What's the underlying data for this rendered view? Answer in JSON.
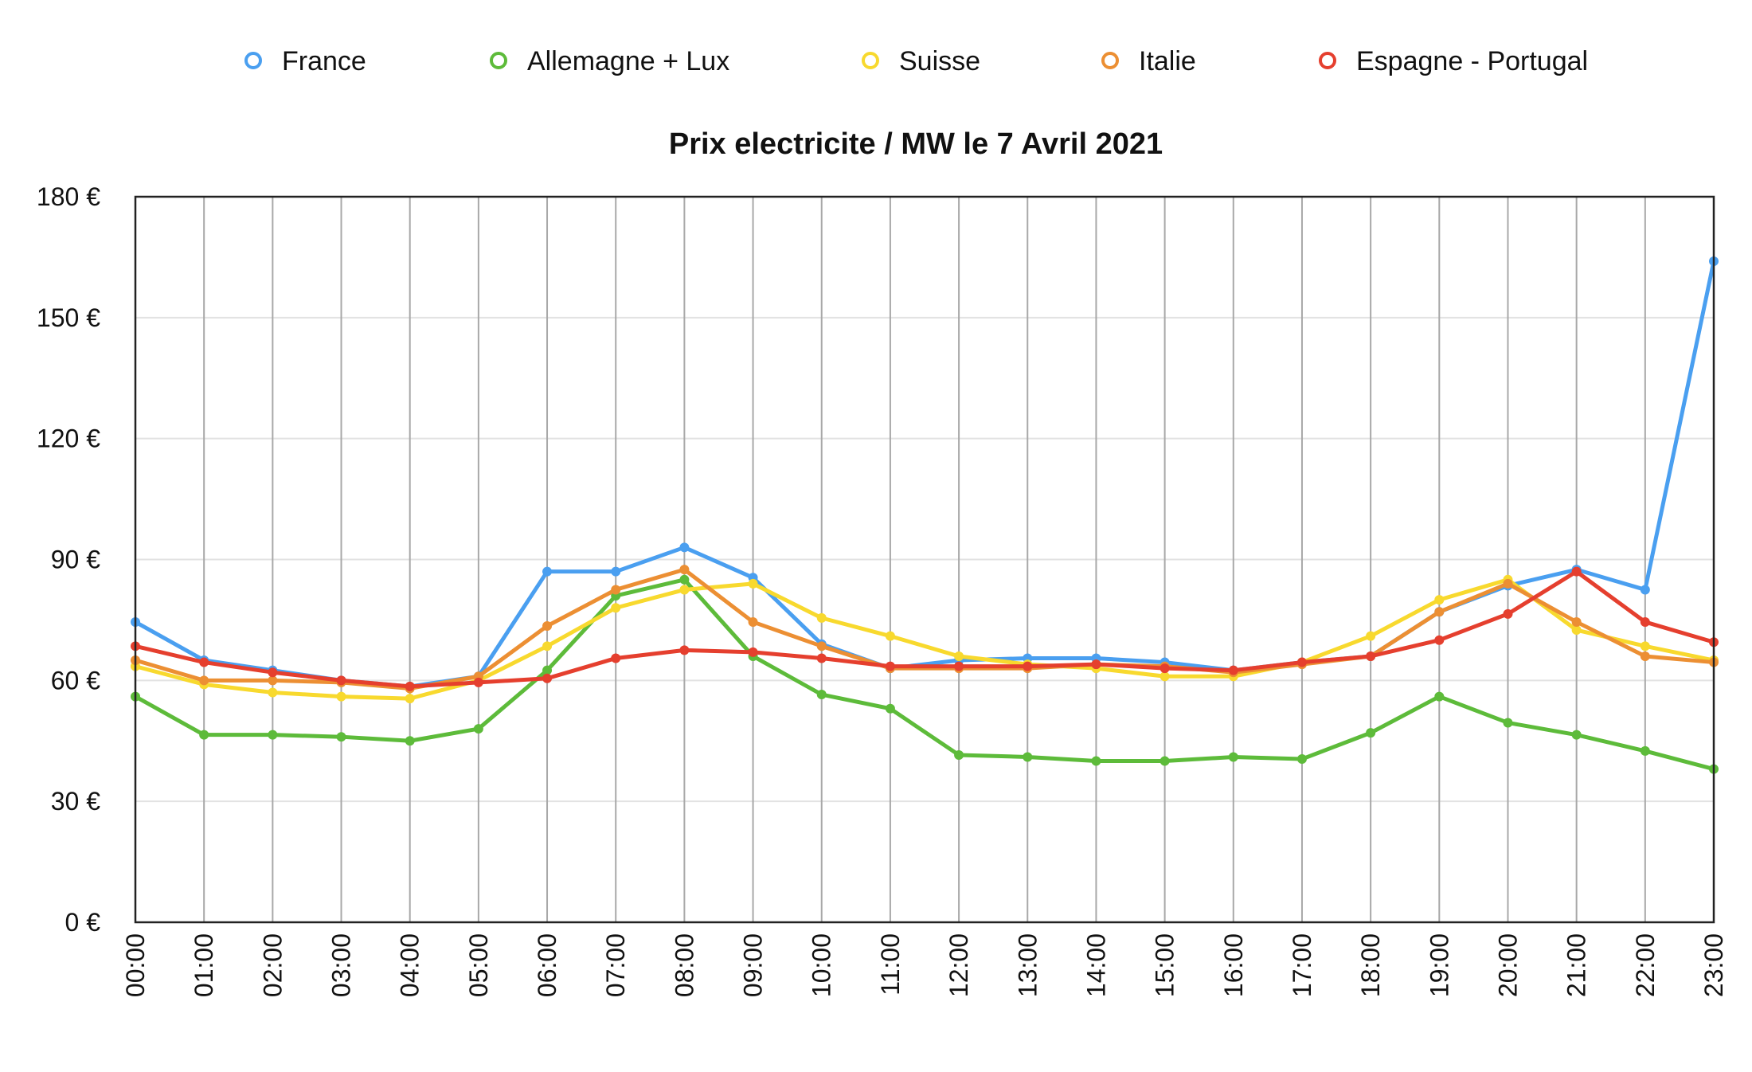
{
  "chart_data": {
    "type": "line",
    "title": "Prix electricite / MW le 7 Avril 2021",
    "xlabel": "",
    "ylabel": "",
    "ylim": [
      0,
      180
    ],
    "y_ticks": [
      "0 €",
      "30 €",
      "60 €",
      "90 €",
      "120 €",
      "150 €",
      "180 €"
    ],
    "y_tick_values": [
      0,
      30,
      60,
      90,
      120,
      150,
      180
    ],
    "categories": [
      "00:00",
      "01:00",
      "02:00",
      "03:00",
      "04:00",
      "05:00",
      "06:00",
      "07:00",
      "08:00",
      "09:00",
      "10:00",
      "11:00",
      "12:00",
      "13:00",
      "14:00",
      "15:00",
      "16:00",
      "17:00",
      "18:00",
      "19:00",
      "20:00",
      "21:00",
      "22:00",
      "23:00"
    ],
    "legend_position": "top",
    "grid": "vertical-and-horizontal",
    "series": [
      {
        "name": "France",
        "color": "#4a9ff0",
        "values": [
          74.5,
          65,
          62.5,
          60,
          58.5,
          61,
          87,
          87,
          93,
          85.5,
          69,
          63,
          65,
          65.5,
          65.5,
          64.5,
          62.5,
          64.5,
          66,
          77,
          83.5,
          87.5,
          82.5,
          164
        ]
      },
      {
        "name": "Allemagne + Lux",
        "color": "#5dbb3a",
        "values": [
          56,
          46.5,
          46.5,
          46,
          45,
          48,
          62.5,
          81,
          85,
          66,
          56.5,
          53,
          41.5,
          41,
          40,
          40,
          41,
          40.5,
          47,
          56,
          49.5,
          46.5,
          42.5,
          38
        ]
      },
      {
        "name": "Suisse",
        "color": "#f8d92e",
        "values": [
          63.5,
          59,
          57,
          56,
          55.5,
          60,
          68.5,
          78,
          82.5,
          84,
          75.5,
          71,
          66,
          64,
          63,
          61,
          61,
          64.5,
          71,
          80,
          85,
          72.5,
          68.5,
          65
        ]
      },
      {
        "name": "Italie",
        "color": "#ec8f33",
        "values": [
          65,
          60,
          60,
          59.5,
          58,
          61,
          73.5,
          82.5,
          87.5,
          74.5,
          68.5,
          63,
          63,
          63,
          64,
          63.5,
          62,
          64,
          66,
          77,
          84,
          74.5,
          66,
          64.5
        ]
      },
      {
        "name": "Espagne - Portugal",
        "color": "#e53f2e",
        "values": [
          68.5,
          64.5,
          62,
          60,
          58.5,
          59.5,
          60.5,
          65.5,
          67.5,
          67,
          65.5,
          63.5,
          63.5,
          63.5,
          64,
          63,
          62.5,
          64.5,
          66,
          70,
          76.5,
          87,
          74.5,
          69.5
        ]
      }
    ]
  }
}
